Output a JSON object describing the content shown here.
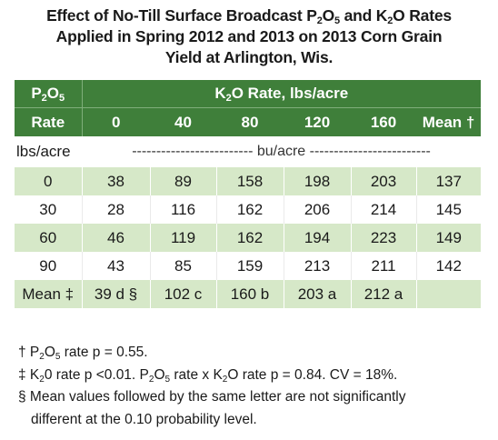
{
  "title": {
    "line1_a": "Effect of No-Till Surface Broadcast P",
    "line1_sub1": "2",
    "line1_b": "O",
    "line1_sub2": "5",
    "line1_c": " and K",
    "line1_sub3": "2",
    "line1_d": "O Rates",
    "line2": "Applied in Spring 2012 and 2013 on 2013 Corn Grain",
    "line3": "Yield at Arlington, Wis."
  },
  "table": {
    "p_header_a": "P",
    "p_header_sub1": "2",
    "p_header_b": "O",
    "p_header_sub2": "5",
    "p_header_rate": "Rate",
    "k_header_a": "K",
    "k_header_sub": "2",
    "k_header_b": "O Rate, lbs/acre",
    "k_rates": [
      "0",
      "40",
      "80",
      "120",
      "160",
      "Mean †"
    ],
    "units_label": "lbs/acre",
    "units_text": "------------------------- bu/acre -------------------------",
    "rows": [
      {
        "p": "0",
        "v": [
          "38",
          "89",
          "158",
          "198",
          "203",
          "137"
        ]
      },
      {
        "p": "30",
        "v": [
          "28",
          "116",
          "162",
          "206",
          "214",
          "145"
        ]
      },
      {
        "p": "60",
        "v": [
          "46",
          "119",
          "162",
          "194",
          "223",
          "149"
        ]
      },
      {
        "p": "90",
        "v": [
          "43",
          "85",
          "159",
          "213",
          "211",
          "142"
        ]
      }
    ],
    "mean_row": {
      "p": "Mean ‡",
      "v": [
        "39 d §",
        "102 c",
        "160 b",
        "203 a",
        "212 a",
        ""
      ]
    }
  },
  "footnotes": {
    "f1_sym": "†",
    "f1_a": " P",
    "f1_sub1": "2",
    "f1_b": "O",
    "f1_sub2": "5",
    "f1_c": " rate p = 0.55.",
    "f2_sym": "‡",
    "f2_a": " K",
    "f2_sub1": "2",
    "f2_b": "0 rate p <0.01.  P",
    "f2_sub2": "2",
    "f2_c": "O",
    "f2_sub3": "5",
    "f2_d": " rate x K",
    "f2_sub4": "2",
    "f2_e": "O rate p = 0.84.  CV = 18%.",
    "f3_sym": "§",
    "f3_line1": " Mean values followed by the same letter are not significantly",
    "f3_line2": "different  at the 0.10 probability level."
  }
}
